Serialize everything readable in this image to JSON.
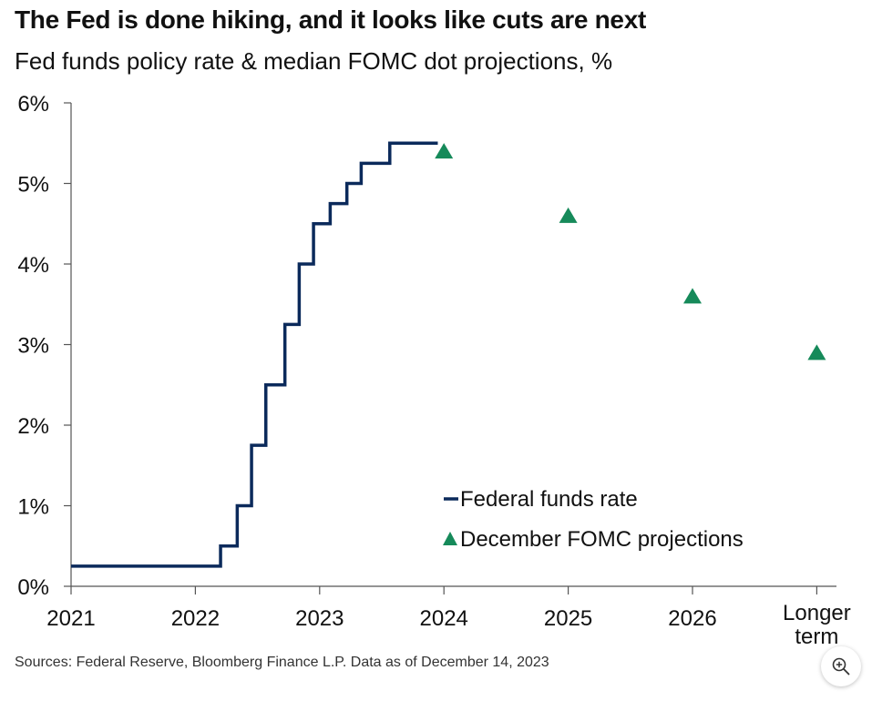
{
  "title": "The Fed is done hiking, and it looks like cuts are next",
  "subtitle": "Fed funds policy rate & median FOMC dot projections, %",
  "source": "Sources:  Federal Reserve, Bloomberg Finance L.P. Data as of December 14, 2023",
  "zoom_icon": "zoom-in-icon",
  "colors": {
    "line": "#0b2a5b",
    "marker": "#168a5a",
    "axis": "#555555",
    "text": "#111111"
  },
  "chart_data": {
    "type": "line",
    "title": "The Fed is done hiking, and it looks like cuts are next",
    "subtitle": "Fed funds policy rate & median FOMC dot projections, %",
    "x_tick_labels": [
      "2021",
      "2022",
      "2023",
      "2024",
      "2025",
      "2026",
      "Longer term"
    ],
    "y_tick_labels": [
      "0%",
      "1%",
      "2%",
      "3%",
      "4%",
      "5%",
      "6%"
    ],
    "ylim": [
      0,
      6
    ],
    "y_unit": "%",
    "legend_position": "bottom-center",
    "grid": false,
    "series": [
      {
        "name": "Federal funds rate",
        "kind": "step-line",
        "points": [
          [
            "2021-01-01",
            0.25
          ],
          [
            "2022-03-16",
            0.5
          ],
          [
            "2022-05-04",
            1.0
          ],
          [
            "2022-06-15",
            1.75
          ],
          [
            "2022-07-27",
            2.5
          ],
          [
            "2022-09-21",
            3.25
          ],
          [
            "2022-11-02",
            4.0
          ],
          [
            "2022-12-14",
            4.5
          ],
          [
            "2023-02-01",
            4.75
          ],
          [
            "2023-03-22",
            5.0
          ],
          [
            "2023-05-03",
            5.25
          ],
          [
            "2023-07-26",
            5.5
          ],
          [
            "2023-12-14",
            5.5
          ]
        ]
      },
      {
        "name": "December FOMC projections",
        "kind": "marker-triangle",
        "points": [
          [
            "2024",
            5.4
          ],
          [
            "2025",
            4.6
          ],
          [
            "2026",
            3.6
          ],
          [
            "Longer term",
            2.9
          ]
        ]
      }
    ]
  }
}
